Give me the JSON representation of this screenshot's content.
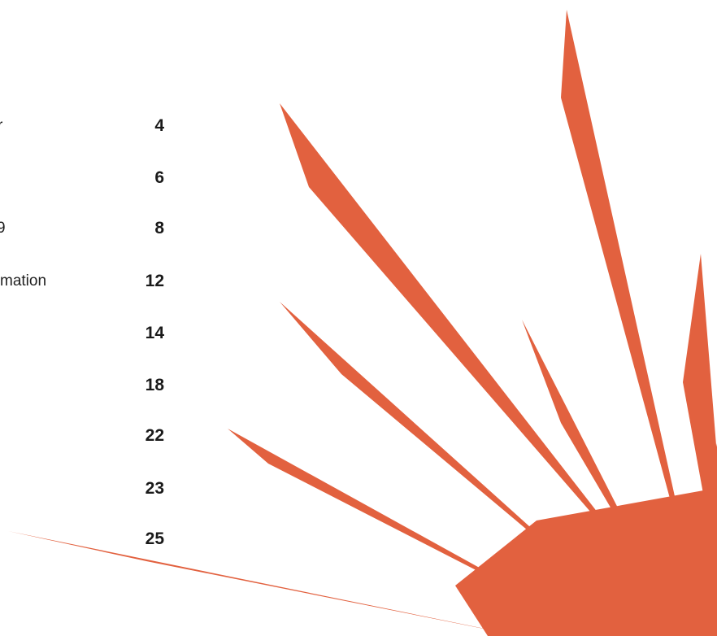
{
  "toc": {
    "entries": [
      {
        "title": "r",
        "page": "4"
      },
      {
        "title": "",
        "page": "6"
      },
      {
        "title": "9",
        "page": "8"
      },
      {
        "title": "mation",
        "page": "12"
      },
      {
        "title": "",
        "page": "14"
      },
      {
        "title": "",
        "page": "18"
      },
      {
        "title": "",
        "page": "22"
      },
      {
        "title": "",
        "page": "23"
      },
      {
        "title": "",
        "page": "25"
      }
    ]
  },
  "decoration": {
    "starburst_color": "#E2613F"
  }
}
